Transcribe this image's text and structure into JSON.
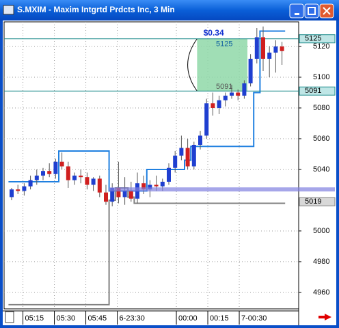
{
  "window": {
    "title": "S.MXIM - Maxim Intgrtd Prdcts Inc, 3 Min"
  },
  "chart_data": {
    "type": "candlestick",
    "up_color": "#1f3fd0",
    "down_color": "#d02020",
    "open": [
      5022,
      5027,
      5026,
      5029,
      5033,
      5036,
      5039,
      5037,
      5045,
      5042,
      5033,
      5036,
      5035,
      5030,
      5034,
      5025,
      5019,
      5028,
      5022,
      5026,
      5021,
      5031,
      5027,
      5030,
      5029,
      5032,
      5041,
      5049,
      5054,
      5042,
      5056,
      5062,
      5083,
      5080,
      5085,
      5088,
      5090,
      5088,
      5096,
      5112,
      5126,
      5112,
      5116,
      5120
    ],
    "high": [
      5028,
      5030,
      5031,
      5036,
      5040,
      5041,
      5044,
      5047,
      5051,
      5045,
      5038,
      5040,
      5038,
      5035,
      5036,
      5030,
      5031,
      5045,
      5035,
      5032,
      5038,
      5036,
      5033,
      5036,
      5034,
      5044,
      5052,
      5062,
      5060,
      5058,
      5065,
      5086,
      5090,
      5088,
      5090,
      5095,
      5092,
      5098,
      5115,
      5132,
      5133,
      5120,
      5124,
      5123
    ],
    "low": [
      5020,
      5024,
      5023,
      5027,
      5030,
      5033,
      5035,
      5034,
      5040,
      5028,
      5030,
      5031,
      5027,
      5026,
      5022,
      5017,
      5016,
      5018,
      5017,
      5019,
      5018,
      5024,
      5022,
      5026,
      5026,
      5030,
      5038,
      5046,
      5040,
      5040,
      5053,
      5060,
      5075,
      5076,
      5081,
      5086,
      5085,
      5086,
      5094,
      5109,
      5104,
      5100,
      5103,
      5108
    ],
    "close": [
      5027,
      5026,
      5029,
      5033,
      5036,
      5039,
      5037,
      5045,
      5042,
      5033,
      5036,
      5035,
      5030,
      5034,
      5025,
      5019,
      5028,
      5022,
      5026,
      5021,
      5031,
      5027,
      5030,
      5029,
      5032,
      5041,
      5049,
      5054,
      5042,
      5056,
      5062,
      5083,
      5080,
      5085,
      5088,
      5090,
      5088,
      5096,
      5112,
      5126,
      5112,
      5116,
      5120,
      5117
    ],
    "series": [
      {
        "color": "#2080e0",
        "values": [
          5032,
          5032,
          5032,
          5032,
          5032,
          5032,
          5032,
          5032,
          5052,
          5052,
          5052,
          5052,
          5052,
          5052,
          5052,
          5052,
          5026,
          5026,
          5026,
          5026,
          5026,
          5026,
          5040,
          5040,
          5040,
          5040,
          5040,
          5040,
          5046,
          5055,
          5055,
          5055,
          5055,
          5055,
          5055,
          5055,
          5055,
          5055,
          5055,
          5090,
          5130,
          5130,
          5130,
          5130
        ]
      },
      {
        "color": "#808080",
        "values": [
          4952,
          4952,
          4952,
          4952,
          4952,
          4952,
          4952,
          4952,
          4952,
          4952,
          4952,
          4952,
          4952,
          4952,
          4952,
          4952,
          5020,
          5028,
          5028,
          5022,
          5018,
          5018,
          5018,
          5018,
          5018,
          5018,
          5018,
          5018,
          5018,
          5018,
          5018,
          5018,
          5018,
          5018,
          5018,
          5018,
          5018,
          5018,
          5018,
          5018,
          5018,
          5018,
          5018,
          5018
        ]
      }
    ],
    "ylim": [
      4949.3,
      5136
    ],
    "yticks": [
      4960,
      4980,
      5000,
      5040,
      5060,
      5080,
      5100,
      5120
    ],
    "xticks": [
      {
        "value": 1.8,
        "label": "05:15"
      },
      {
        "value": 6.8,
        "label": "05:30"
      },
      {
        "value": 11.8,
        "label": "05:45"
      },
      {
        "value": 16.8,
        "label": "6-23:30"
      },
      {
        "value": 26.2,
        "label": "00:00"
      },
      {
        "value": 31.2,
        "label": "00:15"
      },
      {
        "value": 36.2,
        "label": "7-00:30"
      }
    ],
    "grid": true,
    "levels": [
      {
        "value": 5125,
        "color": "#1e8c8c"
      },
      {
        "value": 5091,
        "color": "#1e8c8c"
      },
      {
        "value": 5019,
        "color": "#808080"
      }
    ],
    "band_level": 5027,
    "measure": {
      "label": "$0.34",
      "from": 5091,
      "to": 5125
    }
  }
}
